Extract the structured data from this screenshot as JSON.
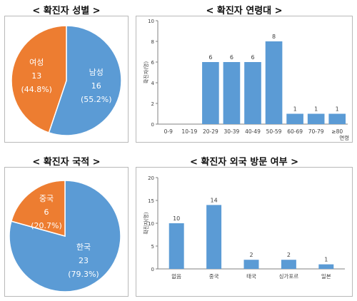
{
  "colors": {
    "blue": "#5b9bd5",
    "orange": "#ed7d31",
    "axis": "#808080",
    "text": "#404040"
  },
  "titles": {
    "gender": "< 확진자 성별 >",
    "age": "< 확진자 연령대 >",
    "nationality": "< 확진자 국적 >",
    "visit": "< 확진자 외국 방문 여부 >"
  },
  "chart_data": [
    {
      "type": "pie",
      "title": "< 확진자 성별 >",
      "slices": [
        {
          "label": "남성",
          "value": 16,
          "percent": "(55.2%)",
          "color": "#5b9bd5"
        },
        {
          "label": "여성",
          "value": 13,
          "percent": "(44.8%)",
          "color": "#ed7d31"
        }
      ]
    },
    {
      "type": "bar",
      "title": "< 확진자 연령대 >",
      "categories": [
        "0-9",
        "10-19",
        "20-29",
        "30-39",
        "40-49",
        "50-59",
        "60-69",
        "70-79",
        "≥80"
      ],
      "values": [
        0,
        0,
        6,
        6,
        6,
        8,
        1,
        1,
        1
      ],
      "data_labels": [
        "",
        "",
        "6",
        "6",
        "6",
        "8",
        "1",
        "1",
        "1"
      ],
      "xlabel": "연령",
      "ylabel": "확진자(명)",
      "ylim": [
        0,
        10
      ],
      "yticks": [
        0,
        2,
        4,
        6,
        8,
        10
      ],
      "color": "#5b9bd5",
      "grid": false
    },
    {
      "type": "pie",
      "title": "< 확진자 국적 >",
      "slices": [
        {
          "label": "한국",
          "value": 23,
          "percent": "(79.3%)",
          "color": "#5b9bd5"
        },
        {
          "label": "중국",
          "value": 6,
          "percent": "(20.7%)",
          "color": "#ed7d31"
        }
      ]
    },
    {
      "type": "bar",
      "title": "< 확진자 외국 방문 여부 >",
      "categories": [
        "없음",
        "중국",
        "태국",
        "싱가포르",
        "일본"
      ],
      "values": [
        10,
        14,
        2,
        2,
        1
      ],
      "data_labels": [
        "10",
        "14",
        "2",
        "2",
        "1"
      ],
      "xlabel": "",
      "ylabel": "확진자(명)",
      "ylim": [
        0,
        20
      ],
      "yticks": [
        0,
        5,
        10,
        15,
        20
      ],
      "color": "#5b9bd5",
      "grid": false
    }
  ]
}
